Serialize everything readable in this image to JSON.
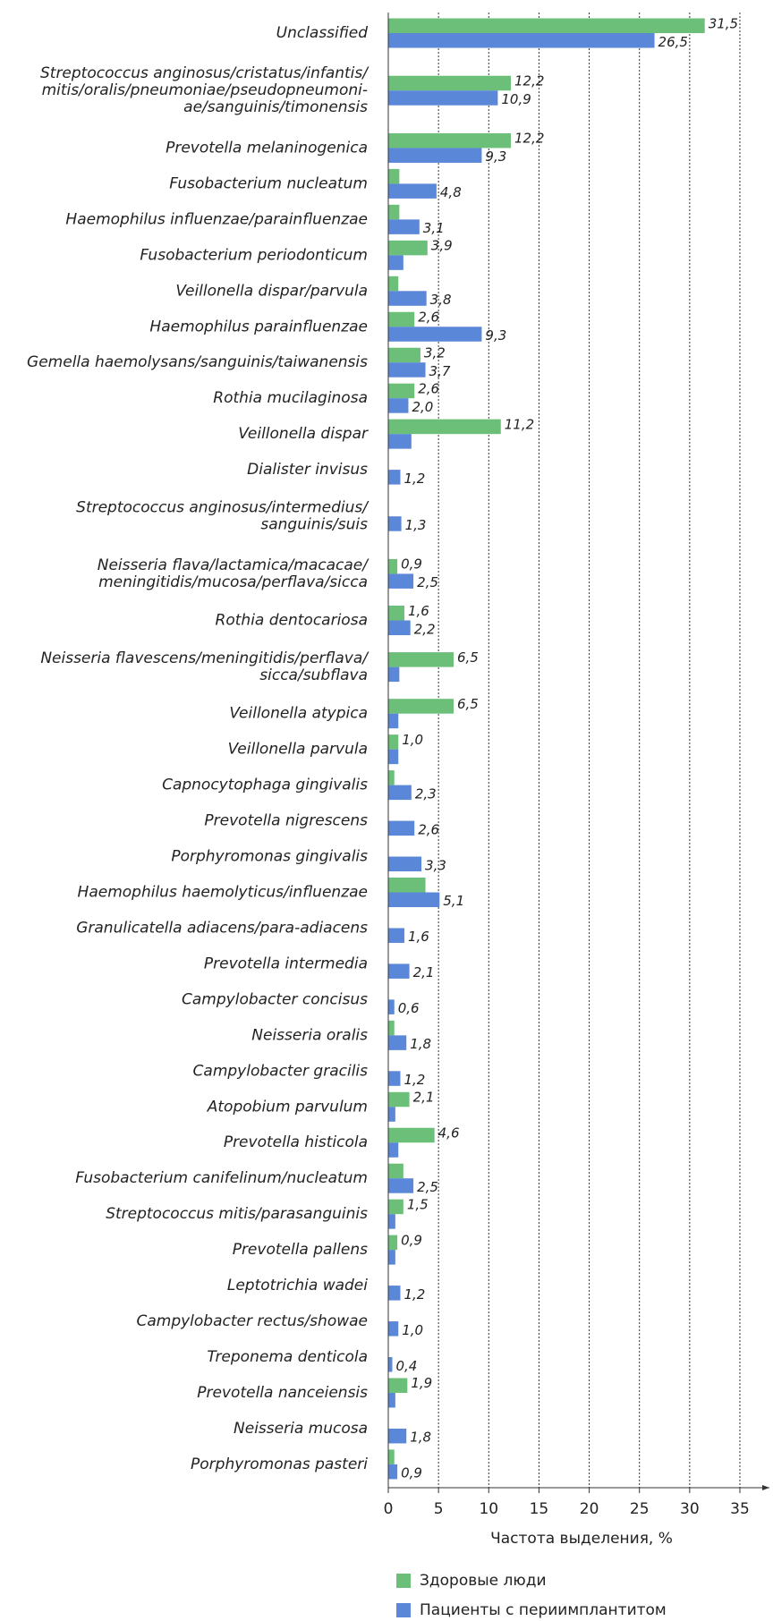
{
  "chart_data": {
    "type": "barh",
    "xlabel": "Частота выделения, %",
    "categories": [
      [
        "Unclassified"
      ],
      [
        "Streptococcus anginosus/cristatus/infantis/",
        "mitis/oralis/pneumoniae/pseudopneumoni-",
        "ae/sanguinis/timonensis"
      ],
      [
        "Prevotella melaninogenica"
      ],
      [
        "Fusobacterium nucleatum"
      ],
      [
        "Haemophilus influenzae/parainfluenzae"
      ],
      [
        "Fusobacterium periodonticum"
      ],
      [
        "Veillonella dispar/parvula"
      ],
      [
        "Haemophilus parainfluenzae"
      ],
      [
        "Gemella haemolysans/sanguinis/taiwanensis"
      ],
      [
        "Rothia mucilaginosa"
      ],
      [
        "Veillonella dispar"
      ],
      [
        "Dialister invisus"
      ],
      [
        "Streptococcus anginosus/intermedius/",
        "sanguinis/suis"
      ],
      [
        "Neisseria flava/lactamica/macacae/",
        "meningitidis/mucosa/perflava/sicca"
      ],
      [
        "Rothia dentocariosa"
      ],
      [
        "Neisseria flavescens/meningitidis/perflava/",
        "sicca/subflava"
      ],
      [
        "Veillonella atypica"
      ],
      [
        "Veillonella parvula"
      ],
      [
        "Capnocytophaga gingivalis"
      ],
      [
        "Prevotella nigrescens"
      ],
      [
        "Porphyromonas gingivalis"
      ],
      [
        "Haemophilus haemolyticus/influenzae"
      ],
      [
        "Granulicatella adiacens/para-adiacens"
      ],
      [
        "Prevotella intermedia"
      ],
      [
        "Campylobacter concisus"
      ],
      [
        "Neisseria oralis"
      ],
      [
        "Campylobacter gracilis"
      ],
      [
        "Atopobium parvulum"
      ],
      [
        "Prevotella histicola"
      ],
      [
        "Fusobacterium canifelinum/nucleatum"
      ],
      [
        "Streptococcus mitis/parasanguinis"
      ],
      [
        "Prevotella pallens"
      ],
      [
        "Leptotrichia wadei"
      ],
      [
        "Campylobacter rectus/showae"
      ],
      [
        "Treponema denticola"
      ],
      [
        "Prevotella nanceiensis"
      ],
      [
        "Neisseria mucosa"
      ],
      [
        "Porphyromonas pasteri"
      ]
    ],
    "series": [
      {
        "name": "Здоровые люди",
        "color": "#6cbf78",
        "values": [
          31.5,
          12.2,
          12.2,
          1.1,
          1.1,
          3.9,
          1.0,
          2.6,
          3.2,
          2.6,
          11.2,
          null,
          null,
          0.9,
          1.6,
          6.5,
          6.5,
          1.0,
          0.6,
          null,
          null,
          3.7,
          null,
          null,
          null,
          0.6,
          null,
          2.1,
          4.6,
          1.5,
          1.5,
          0.9,
          null,
          null,
          null,
          1.9,
          null,
          0.6
        ],
        "value_labels": [
          "31,5",
          "12,2",
          "12,2",
          null,
          null,
          "3,9",
          null,
          "2,6",
          "3,2",
          "2,6",
          "11,2",
          null,
          null,
          "0,9",
          "1,6",
          "6,5",
          "6,5",
          "1,0",
          null,
          null,
          null,
          null,
          null,
          null,
          null,
          null,
          null,
          "2,1",
          "4,6",
          null,
          "1,5",
          "0,9",
          null,
          null,
          null,
          "1,9",
          null,
          null
        ]
      },
      {
        "name": "Пациенты с периимплантитом",
        "color": "#5b87d8",
        "values": [
          26.5,
          10.9,
          9.3,
          4.8,
          3.1,
          1.5,
          3.8,
          9.3,
          3.7,
          2.0,
          2.3,
          1.2,
          1.3,
          2.5,
          2.2,
          1.1,
          1.0,
          1.0,
          2.3,
          2.6,
          3.3,
          5.1,
          1.6,
          2.1,
          0.6,
          1.8,
          1.2,
          0.7,
          1.0,
          2.5,
          0.7,
          0.7,
          1.2,
          1.0,
          0.4,
          0.7,
          1.8,
          0.9
        ],
        "value_labels": [
          "26,5",
          "10,9",
          "9,3",
          "4,8",
          "3,1",
          null,
          "3,8",
          "9,3",
          "3,7",
          "2,0",
          null,
          "1,2",
          "1,3",
          "2,5",
          "2,2",
          null,
          null,
          null,
          "2,3",
          "2,6",
          "3,3",
          "5,1",
          "1,6",
          "2,1",
          "0,6",
          "1,8",
          "1,2",
          null,
          null,
          "2,5",
          null,
          null,
          "1,2",
          "1,0",
          "0,4",
          null,
          "1,8",
          "0,9"
        ]
      }
    ],
    "xlim": [
      0,
      35
    ],
    "xticks": [
      0,
      5,
      10,
      15,
      20,
      25,
      30,
      35
    ],
    "grid": true,
    "legend": "bottom"
  }
}
